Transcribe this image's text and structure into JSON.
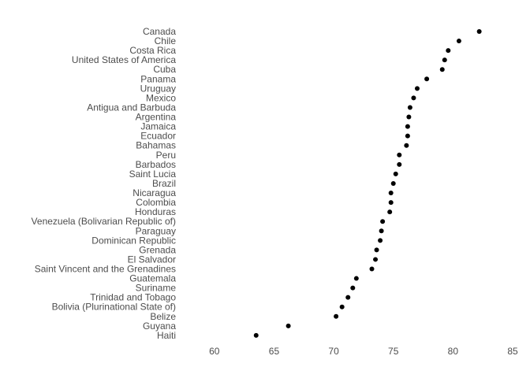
{
  "chart_data": {
    "type": "scatter",
    "title": "",
    "xlabel": "",
    "ylabel": "",
    "xlim": [
      57.5,
      85
    ],
    "xticks": [
      60,
      65,
      70,
      75,
      80,
      85
    ],
    "grid": false,
    "point_color": "#000000",
    "text_color": "#4d4d4d",
    "categories": [
      "Canada",
      "Chile",
      "Costa Rica",
      "United States of America",
      "Cuba",
      "Panama",
      "Uruguay",
      "Mexico",
      "Antigua and Barbuda",
      "Argentina",
      "Jamaica",
      "Ecuador",
      "Bahamas",
      "Peru",
      "Barbados",
      "Saint Lucia",
      "Brazil",
      "Nicaragua",
      "Colombia",
      "Honduras",
      "Venezuela (Bolivarian Republic of)",
      "Paraguay",
      "Dominican Republic",
      "Grenada",
      "El Salvador",
      "Saint Vincent and the Grenadines",
      "Guatemala",
      "Suriname",
      "Trinidad and Tobago",
      "Bolivia (Plurinational State of)",
      "Belize",
      "Guyana",
      "Haiti"
    ],
    "values": [
      82.2,
      80.5,
      79.6,
      79.3,
      79.1,
      77.8,
      77.0,
      76.7,
      76.4,
      76.3,
      76.2,
      76.2,
      76.1,
      75.5,
      75.5,
      75.2,
      75.0,
      74.8,
      74.8,
      74.7,
      74.1,
      74.0,
      73.9,
      73.6,
      73.5,
      73.2,
      71.9,
      71.6,
      71.2,
      70.7,
      70.2,
      66.2,
      63.5
    ]
  }
}
